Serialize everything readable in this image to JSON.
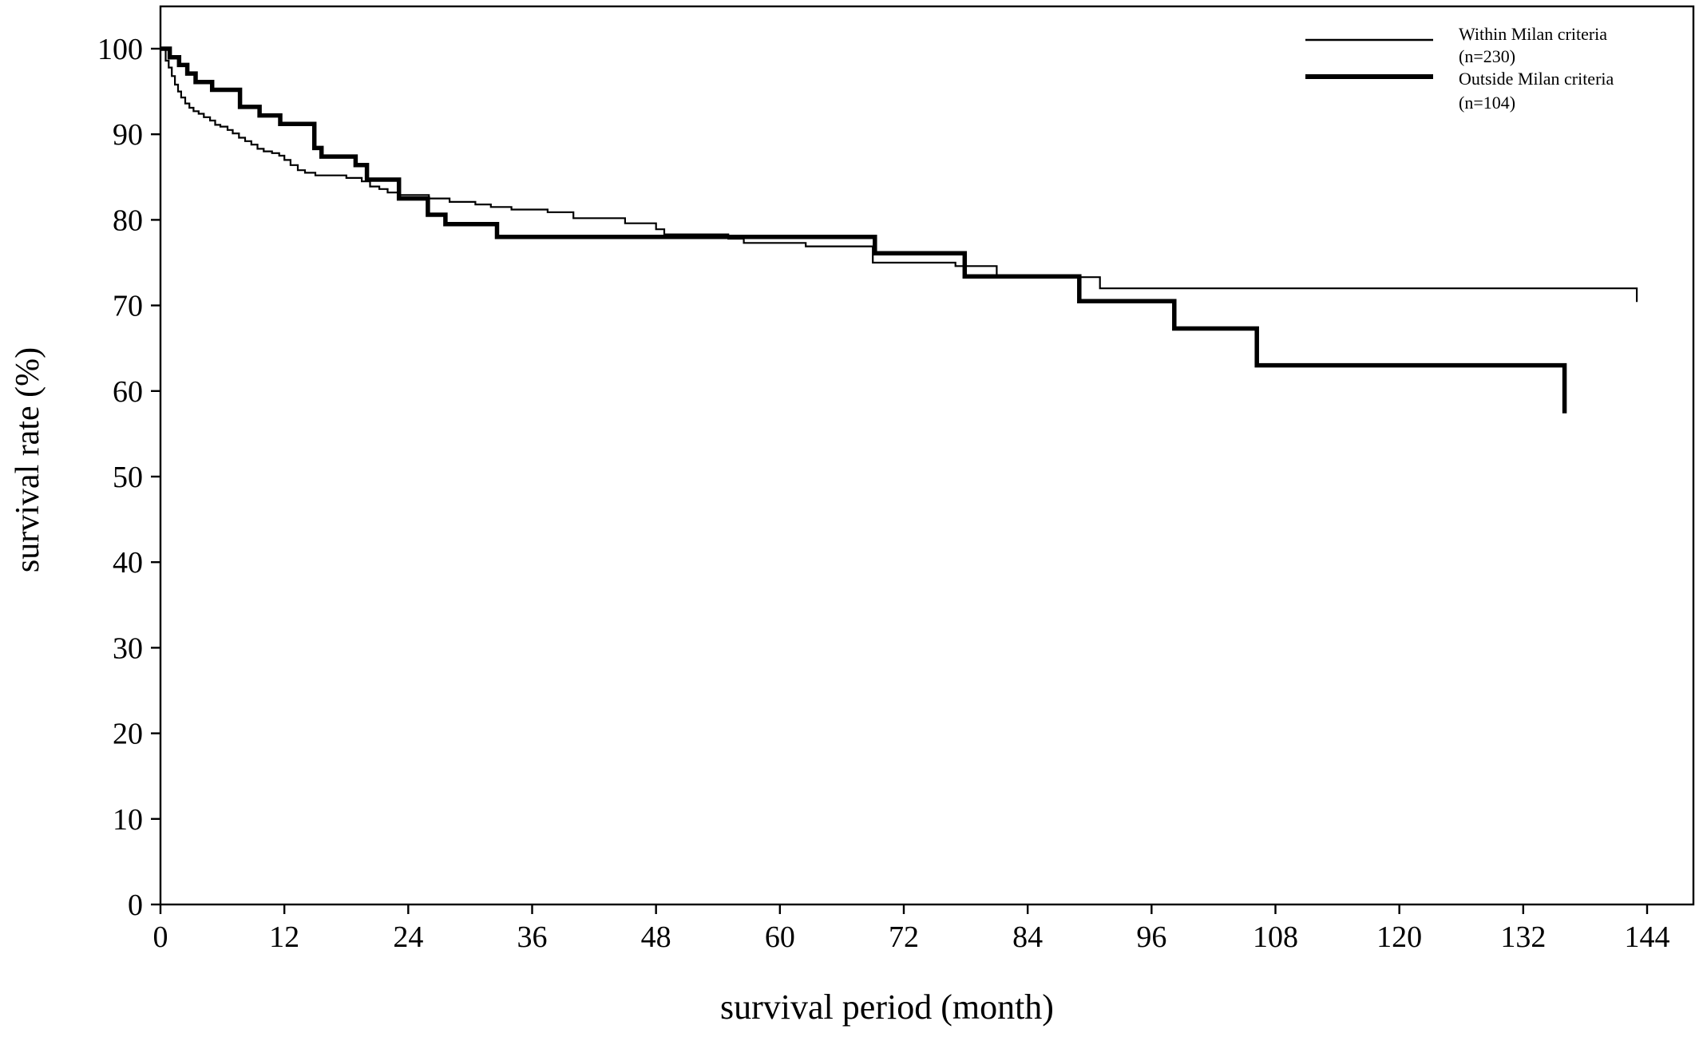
{
  "chart_data": {
    "type": "line",
    "subtype": "kaplan-meier step curve",
    "title": "",
    "xlabel": "survival period (month)",
    "ylabel": "survival rate (%)",
    "xlim": [
      0,
      144
    ],
    "ylim": [
      0,
      100
    ],
    "xticks": [
      0,
      12,
      24,
      36,
      48,
      60,
      72,
      84,
      96,
      108,
      120,
      132,
      144
    ],
    "yticks": [
      0,
      10,
      20,
      30,
      40,
      50,
      60,
      70,
      80,
      90,
      100
    ],
    "grid": false,
    "legend_position": "top-right",
    "series": [
      {
        "name": "Within Milan criteria",
        "count_label": "(n=230)",
        "line_style": "thin",
        "color": "#000000",
        "x": [
          0,
          0.5,
          0.8,
          1.1,
          1.4,
          1.7,
          2.0,
          2.4,
          2.8,
          3.2,
          3.7,
          4.2,
          4.8,
          5.3,
          5.8,
          6.5,
          7.0,
          7.6,
          8.2,
          8.8,
          9.4,
          10.0,
          10.8,
          11.5,
          12.0,
          12.6,
          13.3,
          14.0,
          15.0,
          16.5,
          18.0,
          19.5,
          20.3,
          21.2,
          22.0,
          23.0,
          24.0,
          26.0,
          28.0,
          30.5,
          32.0,
          34.0,
          37.5,
          40.0,
          45.0,
          48.0,
          48.8,
          55.0,
          56.5,
          62.5,
          69.0,
          77.0,
          81.0,
          91.0,
          143.0
        ],
        "y": [
          100,
          98.6,
          97.8,
          96.8,
          95.8,
          95.0,
          94.3,
          93.6,
          93.1,
          92.7,
          92.4,
          92.0,
          91.6,
          91.1,
          90.9,
          90.5,
          90.1,
          89.6,
          89.2,
          88.8,
          88.3,
          88.0,
          87.8,
          87.5,
          87.0,
          86.4,
          85.8,
          85.5,
          85.2,
          85.2,
          84.9,
          84.5,
          83.9,
          83.6,
          83.2,
          82.9,
          82.9,
          82.5,
          82.1,
          81.8,
          81.5,
          81.2,
          80.9,
          80.2,
          79.6,
          78.9,
          78.3,
          77.8,
          77.3,
          76.9,
          75.0,
          74.6,
          73.3,
          72.0,
          70.4
        ]
      },
      {
        "name": "Outside Milan criteria",
        "count_label": "(n=104)",
        "line_style": "thick",
        "color": "#000000",
        "x": [
          0,
          0.9,
          1.8,
          2.6,
          3.4,
          4.1,
          5.0,
          7.7,
          8.6,
          9.6,
          11.6,
          14.9,
          15.6,
          18.9,
          20.0,
          23.1,
          25.9,
          27.6,
          32.6,
          55.1,
          69.2,
          77.9,
          89.0,
          98.2,
          106.2,
          136.0
        ],
        "y": [
          100,
          99.0,
          98.1,
          97.1,
          96.1,
          96.1,
          95.2,
          93.2,
          93.2,
          92.2,
          91.2,
          88.4,
          87.4,
          86.4,
          84.7,
          82.5,
          80.6,
          79.5,
          78.0,
          78.0,
          76.1,
          73.4,
          70.5,
          67.3,
          63.0,
          57.4
        ]
      }
    ]
  }
}
